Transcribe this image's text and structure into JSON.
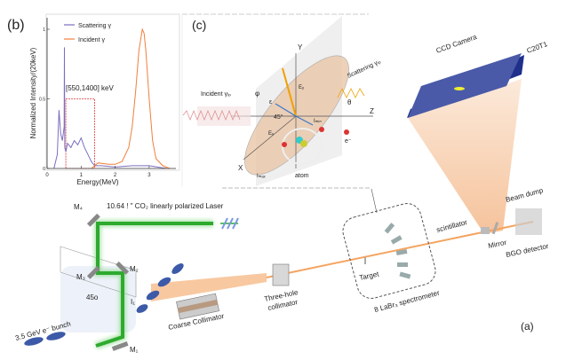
{
  "panel_a": {
    "label": "(a)",
    "laser_label": "10.64 ! \"   CO₂ linearly polarized Laser",
    "mirrors": [
      "M₁",
      "M₂",
      "M₃",
      "M₄"
    ],
    "interaction_point": "I₁",
    "angle": "45o",
    "bunch_label": "3.5 GeV e⁻ bunch",
    "coarse_collimator": "Coarse Collimator",
    "three_hole_collimator": [
      "Three-hole",
      "collimator"
    ],
    "target": "Target",
    "spectrometer": "8 LaBr₃ spectrometer",
    "scintillator": "scintillator",
    "mirror": "Mirror",
    "beam_dump": "Beam dump",
    "bgo": "BGO detector",
    "ccd": "CCD Camera",
    "ccd_model": "C20T1",
    "colors": {
      "laser": "#2eaa2e",
      "gamma_beam": "#f4a460",
      "electron": "#3c5aa8",
      "ccd": "#4a5aa8"
    }
  },
  "panel_c": {
    "label": "(c)",
    "axes": [
      "X",
      "Y",
      "Z"
    ],
    "incident": "Incident γₗₚ",
    "scattering": "Scattering γₗₚ",
    "theta": "θ",
    "phi": "φ",
    "angle": "45°",
    "atom": "atom",
    "electron": "e⁻",
    "e_vec": "ε",
    "e_y": "Eᵧ",
    "e_x": "Eₓ",
    "i_max": "Iₘₐₓ",
    "i_min": "Iₘᵢₙ"
  },
  "chart_data": {
    "type": "line",
    "panel_label": "(b)",
    "xlabel": "Energy(MeV)",
    "ylabel": "Normalized Intensity/(20keV)",
    "xlim": [
      0,
      3.8
    ],
    "ylim": [
      0,
      1
    ],
    "xticks": [
      "0",
      "1",
      "2",
      "3"
    ],
    "yticks": [
      "0",
      "0.5",
      "1"
    ],
    "legend_placement": "top-left",
    "annotation": "[550,1400] keV",
    "window": [
      0.55,
      1.4
    ],
    "series": [
      {
        "name": "Scattering γ",
        "color": "#7b6fc0",
        "x": [
          0.2,
          0.3,
          0.35,
          0.4,
          0.45,
          0.5,
          0.51,
          0.52,
          0.55,
          0.6,
          0.7,
          0.8,
          0.9,
          1.0,
          1.1,
          1.2,
          1.3,
          1.4,
          1.6,
          2.0,
          2.5,
          3.0,
          3.5
        ],
        "y": [
          0,
          0.1,
          0.42,
          0.25,
          0.2,
          0.3,
          0.87,
          0.15,
          0.12,
          0.18,
          0.15,
          0.2,
          0.17,
          0.22,
          0.15,
          0.1,
          0.05,
          0.02,
          0.02,
          0.01,
          0.02,
          0.02,
          0.0
        ]
      },
      {
        "name": "Incident γ",
        "color": "#f07f3c",
        "x": [
          1.3,
          1.5,
          1.8,
          2.0,
          2.2,
          2.4,
          2.5,
          2.6,
          2.7,
          2.8,
          2.85,
          2.9,
          3.0,
          3.1,
          3.2,
          3.4,
          3.6
        ],
        "y": [
          0.0,
          0.04,
          0.03,
          0.03,
          0.05,
          0.15,
          0.3,
          0.55,
          0.85,
          1.0,
          0.97,
          0.85,
          0.5,
          0.2,
          0.07,
          0.02,
          0.0
        ]
      }
    ]
  }
}
